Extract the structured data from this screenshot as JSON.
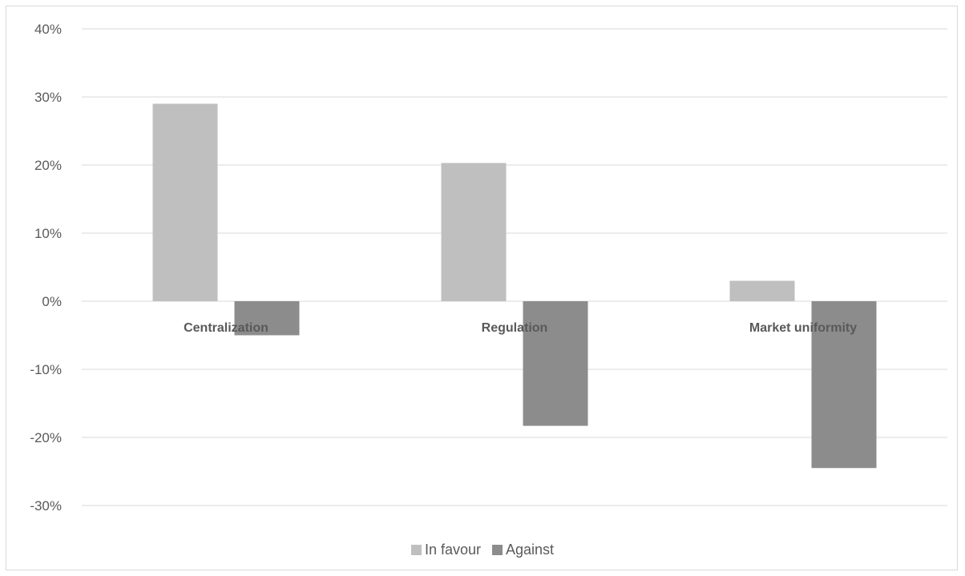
{
  "chart_data": {
    "type": "bar",
    "categories": [
      "Centralization",
      "Regulation",
      "Market uniformity"
    ],
    "series": [
      {
        "name": "In favour",
        "values": [
          29,
          20.3,
          3
        ],
        "color": "#bfbfbf"
      },
      {
        "name": "Against",
        "values": [
          -5,
          -18.3,
          -24.5
        ],
        "color": "#8c8c8c"
      }
    ],
    "ylim": [
      -30,
      40
    ],
    "yticks": [
      "40%",
      "30%",
      "20%",
      "10%",
      "0%",
      "-10%",
      "-20%",
      "-30%"
    ],
    "ytick_values": [
      40,
      30,
      20,
      10,
      0,
      -10,
      -20,
      -30
    ],
    "grid": true,
    "legend_position": "bottom"
  }
}
